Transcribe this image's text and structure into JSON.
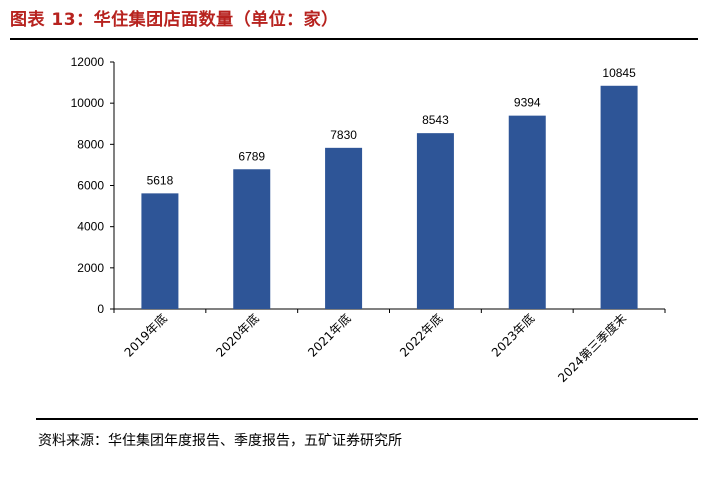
{
  "title": "图表 13：华住集团店面数量（单位：家）",
  "source": "资料来源：华住集团年度报告、季度报告，五矿证券研究所",
  "chart_data": {
    "type": "bar",
    "categories": [
      "2019年底",
      "2020年底",
      "2021年底",
      "2022年底",
      "2023年底",
      "2024第三季度末"
    ],
    "values": [
      5618,
      6789,
      7830,
      8543,
      9394,
      10845
    ],
    "ylim": [
      0,
      12000
    ],
    "yticks": [
      "0",
      "2000",
      "4000",
      "6000",
      "8000",
      "10000",
      "12000"
    ],
    "bar_color": "#2e5597",
    "grid": false,
    "legend": "none"
  }
}
